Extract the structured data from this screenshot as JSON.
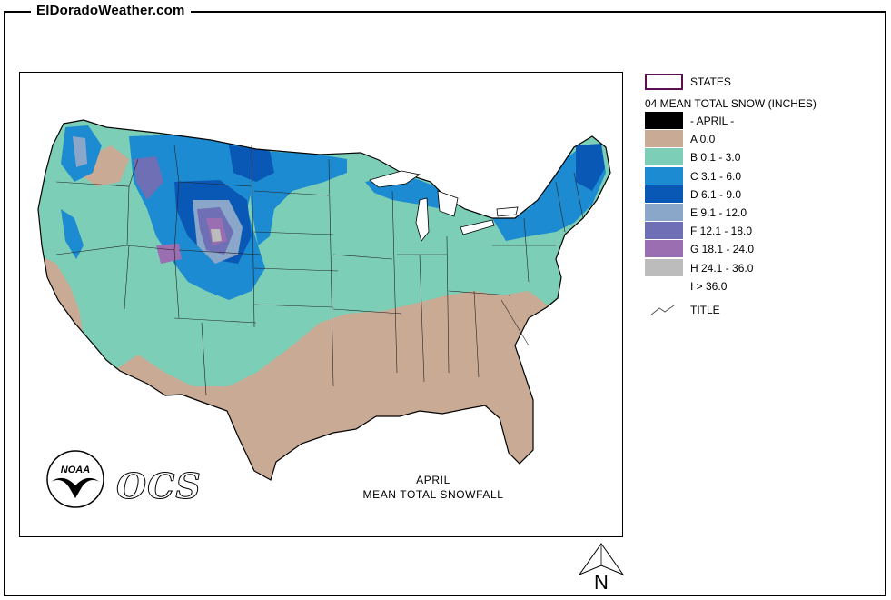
{
  "site": {
    "title": "ElDoradoWeather.com"
  },
  "map": {
    "caption_line1": "APRIL",
    "caption_line2": "MEAN TOTAL SNOWFALL",
    "logo_noaa_text": "NOAA",
    "logo_ocs_text": "OCS"
  },
  "legend": {
    "states_label": "STATES",
    "heading": "04 MEAN TOTAL SNOW (INCHES)",
    "items": [
      {
        "label": "- APRIL -",
        "color": "#000000"
      },
      {
        "label": "A 0.0",
        "color": "#c8aa95"
      },
      {
        "label": "B 0.1 - 3.0",
        "color": "#7ccfb6"
      },
      {
        "label": "C 3.1 - 6.0",
        "color": "#1c8bd1"
      },
      {
        "label": "D 6.1 - 9.0",
        "color": "#0a58b5"
      },
      {
        "label": "E 9.1 - 12.0",
        "color": "#8aa6c9"
      },
      {
        "label": "F 12.1 - 18.0",
        "color": "#6e6fb5"
      },
      {
        "label": "G 18.1 - 24.0",
        "color": "#9a6eb0"
      },
      {
        "label": "H 24.1 - 36.0",
        "color": "#bcbcbc"
      },
      {
        "label": "I > 36.0",
        "color": "#ffffff"
      }
    ],
    "title_label": "TITLE"
  },
  "north": {
    "letter": "N"
  }
}
